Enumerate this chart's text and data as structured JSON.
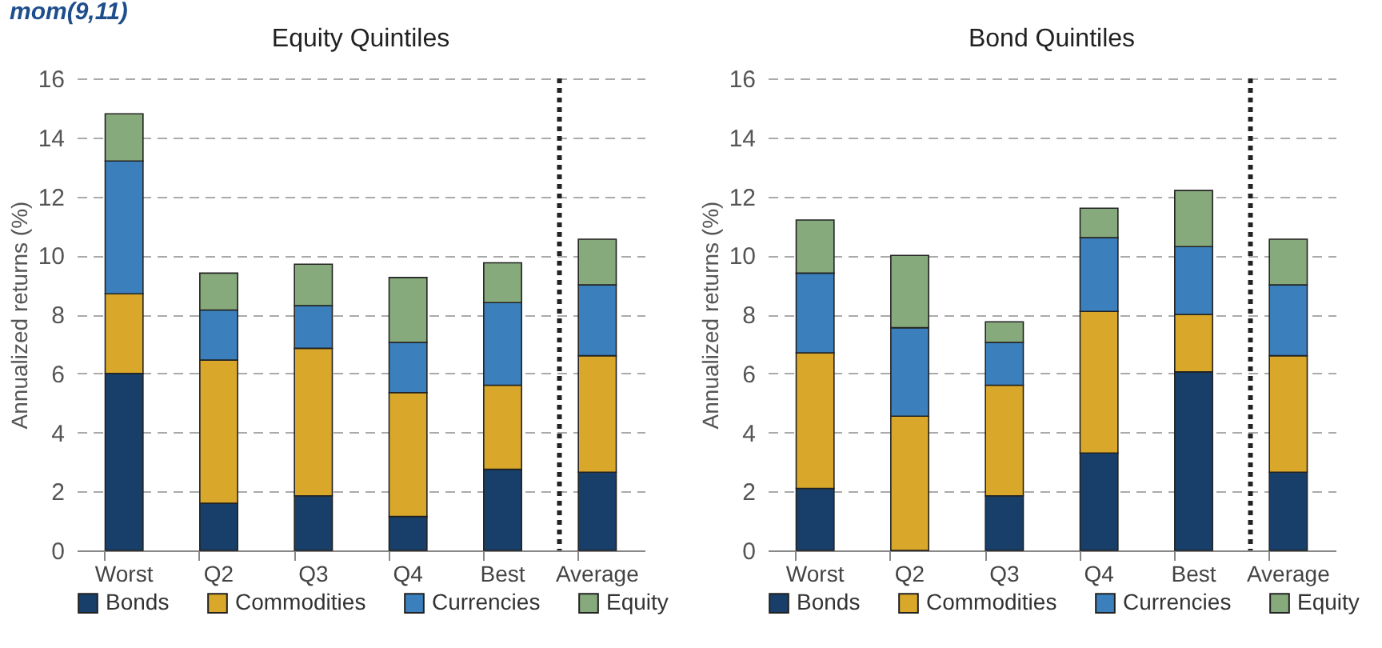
{
  "chart_data": [
    {
      "type": "bar",
      "title": "Equity Quintiles",
      "ylabel": "Annualized returns (%)",
      "annotations": [
        "mom(9,11)"
      ],
      "categories": [
        "Worst",
        "Q2",
        "Q3",
        "Q4",
        "Best",
        "Average"
      ],
      "stacked": true,
      "series": [
        {
          "name": "Bonds",
          "color": "#173f6a",
          "values": [
            6.0,
            1.6,
            1.85,
            1.15,
            2.75,
            2.65
          ]
        },
        {
          "name": "Commodities",
          "color": "#d9a82a",
          "values": [
            2.7,
            4.85,
            5.0,
            4.2,
            2.85,
            3.95
          ]
        },
        {
          "name": "Currencies",
          "color": "#3b80bd",
          "values": [
            4.5,
            1.7,
            1.45,
            1.7,
            2.8,
            2.4
          ]
        },
        {
          "name": "Equity",
          "color": "#87aa7c",
          "values": [
            1.6,
            1.25,
            1.4,
            2.2,
            1.35,
            1.55
          ]
        }
      ],
      "ylim": [
        0,
        16
      ],
      "yticks": [
        0,
        2,
        4,
        6,
        8,
        10,
        12,
        14,
        16
      ],
      "grid": "y",
      "legend": "bottom",
      "ref_lines": [
        {
          "axis": "x",
          "value": "Average",
          "line_style": "dotted",
          "color": "#222222"
        }
      ]
    },
    {
      "type": "bar",
      "title": "Bond Quintiles",
      "ylabel": "Annualized returns (%)",
      "categories": [
        "Worst",
        "Q2",
        "Q3",
        "Q4",
        "Best",
        "Average"
      ],
      "stacked": true,
      "series": [
        {
          "name": "Bonds",
          "color": "#173f6a",
          "values": [
            2.1,
            0,
            1.85,
            3.3,
            6.05,
            2.65
          ]
        },
        {
          "name": "Commodities",
          "color": "#d9a82a",
          "values": [
            4.6,
            4.55,
            3.75,
            4.8,
            1.95,
            3.95
          ]
        },
        {
          "name": "Currencies",
          "color": "#3b80bd",
          "values": [
            2.7,
            3.0,
            1.45,
            2.5,
            2.3,
            2.4
          ]
        },
        {
          "name": "Equity",
          "color": "#87aa7c",
          "values": [
            1.8,
            2.45,
            0.7,
            1.0,
            1.9,
            1.55
          ]
        }
      ],
      "ylim": [
        0,
        16
      ],
      "yticks": [
        0,
        2,
        4,
        6,
        8,
        10,
        12,
        14,
        16
      ],
      "grid": "y",
      "legend": "bottom",
      "ref_lines": [
        {
          "axis": "x",
          "value": "Average",
          "line_style": "dotted",
          "color": "#222222"
        }
      ]
    }
  ]
}
